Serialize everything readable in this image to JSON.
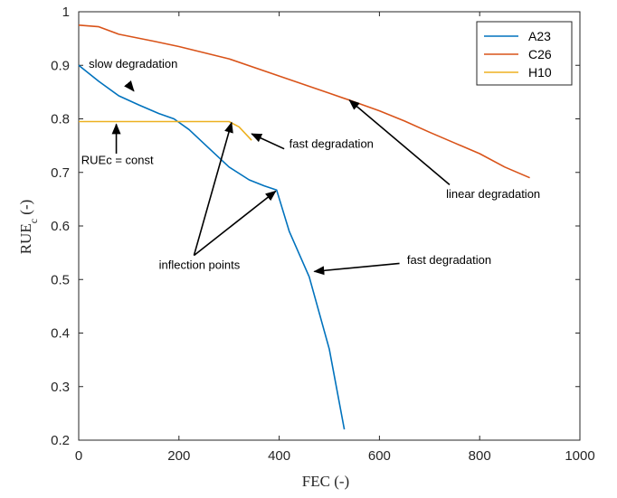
{
  "chart_data": {
    "type": "line",
    "title": "",
    "xlabel": "FEC (-)",
    "ylabel": "RUE",
    "ylabel_sub": "c",
    "ylabel_suffix": " (-)",
    "xlim": [
      0,
      1000
    ],
    "ylim": [
      0.2,
      1.0
    ],
    "xticks": [
      0,
      200,
      400,
      600,
      800,
      1000
    ],
    "yticks": [
      0.2,
      0.3,
      0.4,
      0.5,
      0.6,
      0.7,
      0.8,
      0.9,
      1.0
    ],
    "ytick_labels": [
      "0.2",
      "0.3",
      "0.4",
      "0.5",
      "0.6",
      "0.7",
      "0.8",
      "0.9",
      "1"
    ],
    "grid": false,
    "legend_position": "top-right",
    "series": [
      {
        "name": "A23",
        "color": "#0072BD",
        "x": [
          0,
          40,
          80,
          120,
          160,
          190,
          220,
          260,
          300,
          340,
          370,
          395,
          420,
          460,
          500,
          530
        ],
        "y": [
          0.9,
          0.87,
          0.843,
          0.826,
          0.81,
          0.8,
          0.78,
          0.745,
          0.71,
          0.686,
          0.675,
          0.667,
          0.59,
          0.505,
          0.37,
          0.22
        ]
      },
      {
        "name": "C26",
        "color": "#D95319",
        "x": [
          0,
          40,
          80,
          150,
          200,
          300,
          400,
          500,
          540,
          600,
          650,
          700,
          750,
          800,
          850,
          900
        ],
        "y": [
          0.975,
          0.972,
          0.958,
          0.945,
          0.935,
          0.912,
          0.88,
          0.848,
          0.835,
          0.815,
          0.796,
          0.775,
          0.755,
          0.735,
          0.71,
          0.69
        ]
      },
      {
        "name": "H10",
        "color": "#EDB120",
        "x": [
          0,
          100,
          200,
          300,
          320,
          335,
          345
        ],
        "y": [
          0.795,
          0.795,
          0.795,
          0.795,
          0.785,
          0.77,
          0.76
        ]
      }
    ],
    "annotations": [
      {
        "text": "slow degradation",
        "tx": 20,
        "ty": 0.895,
        "ax": 103,
        "ay": 0.86,
        "hx": 110,
        "hy": 0.852
      },
      {
        "text": "RUEc = const",
        "tx": 5,
        "ty": 0.716,
        "ax": 75,
        "ay": 0.735,
        "hx": 75,
        "hy": 0.79
      },
      {
        "text": "fast degradation",
        "tx": 420,
        "ty": 0.746,
        "ax": 410,
        "ay": 0.744,
        "hx": 345,
        "hy": 0.772
      },
      {
        "text": "linear degradation",
        "tx": 733,
        "ty": 0.652,
        "ax": 740,
        "ay": 0.677,
        "hx": 540,
        "hy": 0.835
      },
      {
        "text": "inflection points",
        "tx": 160,
        "ty": 0.52,
        "ax": 230,
        "ay": 0.545,
        "hx": 305,
        "hy": 0.793,
        "ax2": 230,
        "ay2": 0.545,
        "hx2": 393,
        "hy2": 0.665
      },
      {
        "text": "fast degradation",
        "tx": 655,
        "ty": 0.529,
        "ax": 640,
        "ay": 0.53,
        "hx": 470,
        "hy": 0.515
      }
    ]
  }
}
